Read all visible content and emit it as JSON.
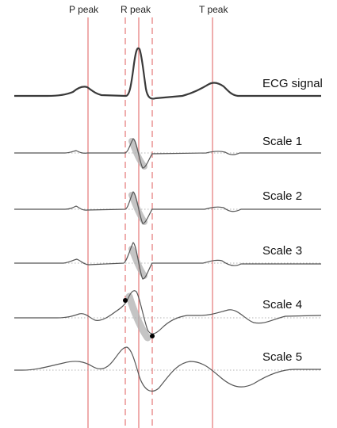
{
  "figure": {
    "peak_markers": [
      {
        "label": "P peak"
      },
      {
        "label": "R peak"
      },
      {
        "label": "T peak"
      }
    ],
    "signals": [
      {
        "label": "ECG signal"
      },
      {
        "label": "Scale 1"
      },
      {
        "label": "Scale 2"
      },
      {
        "label": "Scale 3"
      },
      {
        "label": "Scale 4"
      },
      {
        "label": "Scale 5"
      }
    ],
    "colors": {
      "marker_line": "#e88a8a",
      "ecg_trace": "#3a3a3a",
      "scale_trace": "#555555",
      "baseline_dots": "#9a9a9a",
      "highlight_band": "#b0b0b0",
      "endpoint_dot": "#000000"
    }
  }
}
